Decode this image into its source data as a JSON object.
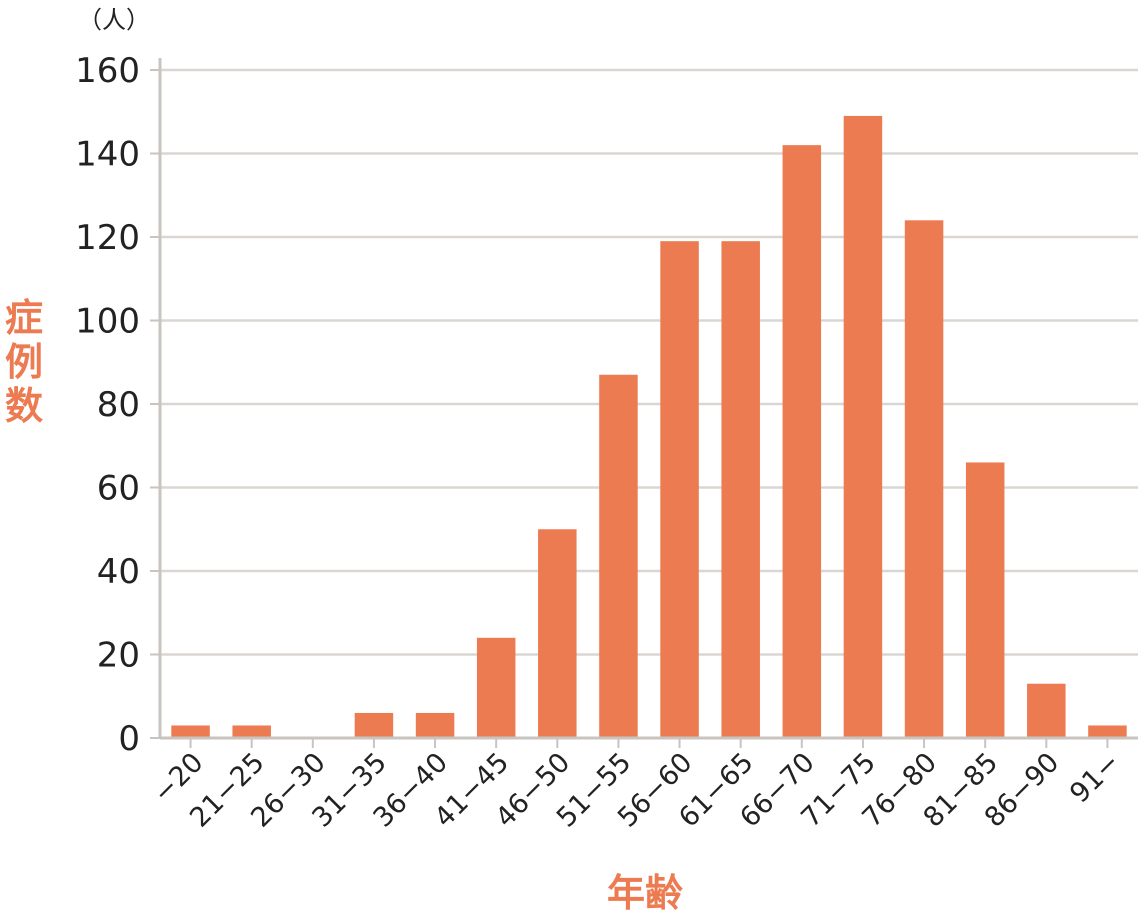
{
  "chart_data": {
    "type": "bar",
    "categories": [
      "−20",
      "21−25",
      "26−30",
      "31−35",
      "36−40",
      "41−45",
      "46−50",
      "51−55",
      "56−60",
      "61−65",
      "66−70",
      "71−75",
      "76−80",
      "81−85",
      "86−90",
      "91−"
    ],
    "values": [
      3,
      3,
      0,
      6,
      6,
      24,
      50,
      87,
      119,
      119,
      142,
      149,
      124,
      66,
      13,
      3
    ],
    "title": "",
    "xlabel": "年齢",
    "ylabel": "症例数",
    "y_unit": "（人）",
    "ylim": [
      0,
      160
    ],
    "yticks": [
      0,
      20,
      40,
      60,
      80,
      100,
      120,
      140,
      160
    ],
    "grid": true,
    "legend": "none",
    "colors": {
      "bar": "#EC7B52",
      "axis_title": "#EC7B52",
      "grid": "#DAD6D2",
      "axis": "#C9C4BF",
      "text": "#222222"
    }
  }
}
